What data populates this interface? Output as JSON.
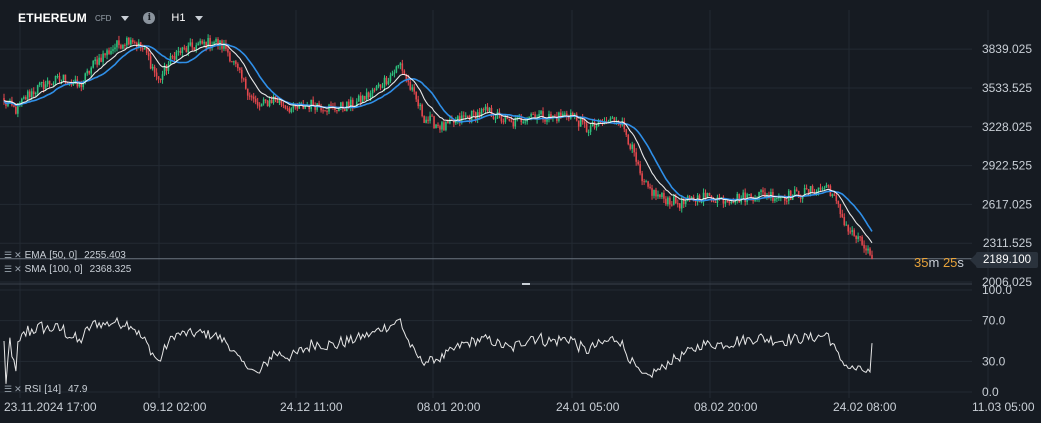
{
  "header": {
    "symbol": "ETHEREUM",
    "instrument_type": "CFD",
    "timeframe": "H1",
    "info_icon": "info-icon",
    "dropdown_icon": "caret-down-icon"
  },
  "indicators": {
    "ema": {
      "label": "EMA",
      "params": "[50, 0]",
      "value": "2255.403",
      "color": "#ffffff"
    },
    "sma": {
      "label": "SMA",
      "params": "[100, 0]",
      "value": "2368.325",
      "color": "#2f8fe8"
    },
    "rsi": {
      "label": "RSI",
      "params": "[14]",
      "value": "47.9"
    }
  },
  "current_price": "2189.100",
  "countdown": {
    "minutes": "35",
    "minutes_unit": "m",
    "seconds": "25",
    "seconds_unit": "s"
  },
  "colors": {
    "background": "#161b22",
    "grid": "#232a33",
    "up": "#2ec27e",
    "down": "#e5484d",
    "countdown": "#e8a33a"
  },
  "chart_data": [
    {
      "type": "candlestick",
      "ylim": [
        2006.025,
        3990
      ],
      "y_ticks": [
        "3839.025",
        "3533.525",
        "3228.025",
        "2922.525",
        "2617.025",
        "2311.525",
        "2006.025"
      ],
      "x_ticks": [
        "23.11.2024  17:00",
        "09.12  02:00",
        "24.12  11:00",
        "08.01  20:00",
        "24.01  05:00",
        "08.02  20:00",
        "24.02  08:00",
        "11.03  05:00"
      ],
      "trend_points": [
        [
          0,
          3420
        ],
        [
          6,
          3360
        ],
        [
          12,
          3480
        ],
        [
          20,
          3560
        ],
        [
          30,
          3610
        ],
        [
          38,
          3540
        ],
        [
          46,
          3740
        ],
        [
          56,
          3860
        ],
        [
          64,
          3930
        ],
        [
          72,
          3800
        ],
        [
          78,
          3590
        ],
        [
          86,
          3800
        ],
        [
          96,
          3860
        ],
        [
          106,
          3900
        ],
        [
          112,
          3850
        ],
        [
          120,
          3600
        ],
        [
          128,
          3380
        ],
        [
          136,
          3450
        ],
        [
          146,
          3360
        ],
        [
          156,
          3410
        ],
        [
          166,
          3370
        ],
        [
          176,
          3400
        ],
        [
          186,
          3500
        ],
        [
          196,
          3650
        ],
        [
          200,
          3720
        ],
        [
          206,
          3500
        ],
        [
          212,
          3300
        ],
        [
          222,
          3220
        ],
        [
          232,
          3300
        ],
        [
          244,
          3350
        ],
        [
          256,
          3250
        ],
        [
          266,
          3330
        ],
        [
          276,
          3300
        ],
        [
          286,
          3330
        ],
        [
          294,
          3210
        ],
        [
          302,
          3250
        ],
        [
          310,
          3300
        ],
        [
          314,
          3180
        ],
        [
          318,
          3000
        ],
        [
          322,
          2780
        ],
        [
          330,
          2680
        ],
        [
          342,
          2620
        ],
        [
          352,
          2680
        ],
        [
          362,
          2660
        ],
        [
          372,
          2670
        ],
        [
          382,
          2700
        ],
        [
          392,
          2680
        ],
        [
          402,
          2700
        ],
        [
          412,
          2740
        ],
        [
          416,
          2760
        ],
        [
          420,
          2620
        ],
        [
          426,
          2420
        ],
        [
          432,
          2320
        ],
        [
          436,
          2240
        ],
        [
          438,
          2189
        ]
      ],
      "series": [
        {
          "name": "EMA [50, 0]",
          "last": 2255.403
        },
        {
          "name": "SMA [100, 0]",
          "last": 2368.325
        }
      ]
    },
    {
      "type": "line",
      "name": "RSI [14]",
      "ylim": [
        0,
        100
      ],
      "y_ticks": [
        "100.0",
        "70.0",
        "30.0",
        "0.0"
      ],
      "last": 47.9
    }
  ]
}
